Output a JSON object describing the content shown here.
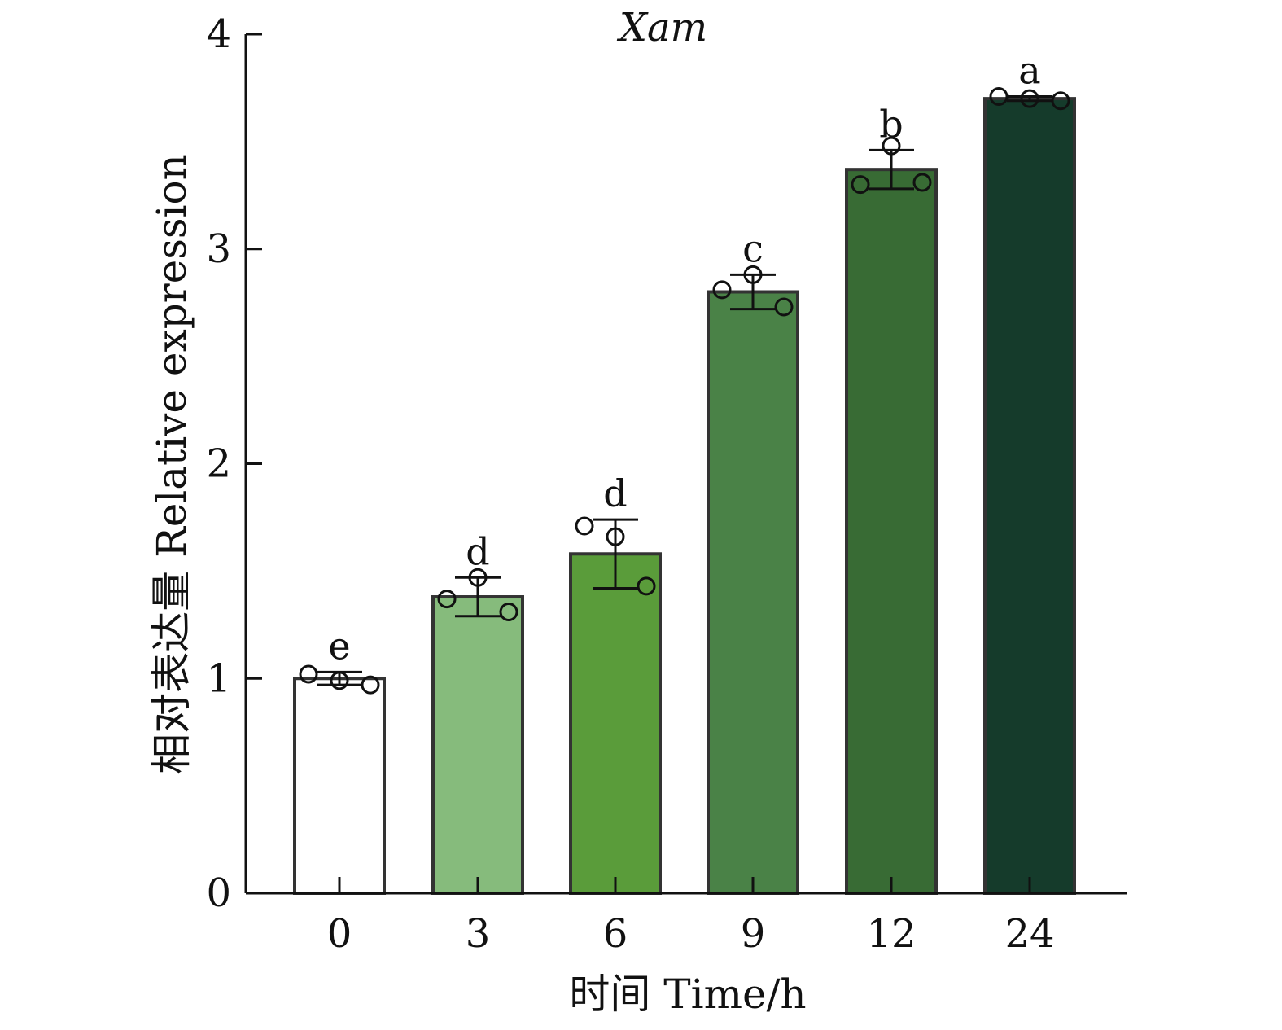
{
  "chart_data": {
    "type": "bar",
    "title": "Xam",
    "xlabel": "时间 Time/h",
    "ylabel": "相对表达量 Relative expression",
    "categories": [
      "0",
      "3",
      "6",
      "9",
      "12",
      "24"
    ],
    "values": [
      1.0,
      1.38,
      1.58,
      2.8,
      3.37,
      3.7
    ],
    "error": [
      0.03,
      0.09,
      0.16,
      0.08,
      0.09,
      0.01
    ],
    "significance": [
      "e",
      "d",
      "d",
      "c",
      "b",
      "a"
    ],
    "points": [
      [
        1.02,
        0.99,
        0.97
      ],
      [
        1.37,
        1.47,
        1.31
      ],
      [
        1.71,
        1.66,
        1.43
      ],
      [
        2.81,
        2.88,
        2.73
      ],
      [
        3.3,
        3.48,
        3.31
      ],
      [
        3.71,
        3.7,
        3.69
      ]
    ],
    "colors": [
      "#ffffff",
      "#86bb7c",
      "#5a9c3a",
      "#4a8247",
      "#386b34",
      "#153b2b"
    ],
    "ylim": [
      0,
      4
    ],
    "yticks": [
      "0",
      "1",
      "2",
      "3",
      "4"
    ],
    "grid": false,
    "legend": "none"
  }
}
